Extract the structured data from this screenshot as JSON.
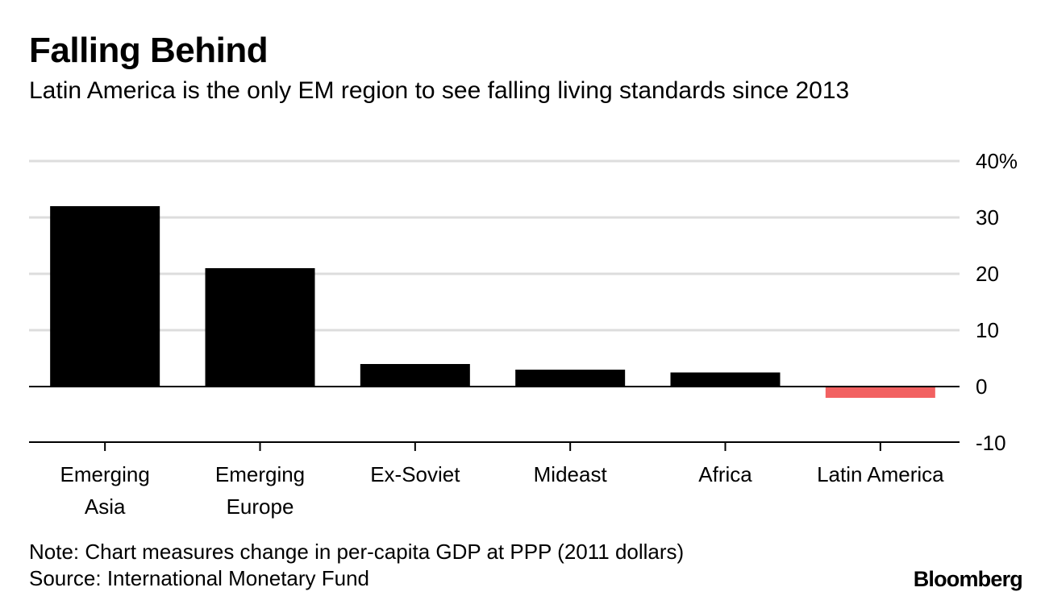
{
  "header": {
    "title": "Falling Behind",
    "subtitle": "Latin America is the only EM region to see falling living standards since 2013"
  },
  "footer": {
    "note": "Note: Chart measures change in per-capita GDP at PPP (2011 dollars)",
    "source": "Source: International Monetary Fund",
    "brand": "Bloomberg"
  },
  "colors": {
    "positive_bar": "#000000",
    "negative_bar": "#f26161",
    "gridline": "#dddddd",
    "axis": "#000000"
  },
  "chart_data": {
    "type": "bar",
    "title": "Falling Behind",
    "subtitle": "Latin America is the only EM region to see falling living standards since 2013",
    "categories": [
      "Emerging Asia",
      "Emerging Europe",
      "Ex-Soviet",
      "Mideast",
      "Africa",
      "Latin America"
    ],
    "category_lines": [
      [
        "Emerging",
        "Asia"
      ],
      [
        "Emerging",
        "Europe"
      ],
      [
        "Ex-Soviet"
      ],
      [
        "Mideast"
      ],
      [
        "Africa"
      ],
      [
        "Latin America"
      ]
    ],
    "values": [
      32,
      21,
      4,
      3,
      2.5,
      -2
    ],
    "xlabel": "",
    "ylabel": "",
    "ylim": [
      -10,
      40
    ],
    "yticks": [
      40,
      30,
      20,
      10,
      0,
      -10
    ],
    "ytick_labels": [
      "40%",
      "30",
      "20",
      "10",
      "0",
      "-10"
    ],
    "grid": true,
    "y_axis_side": "right"
  }
}
